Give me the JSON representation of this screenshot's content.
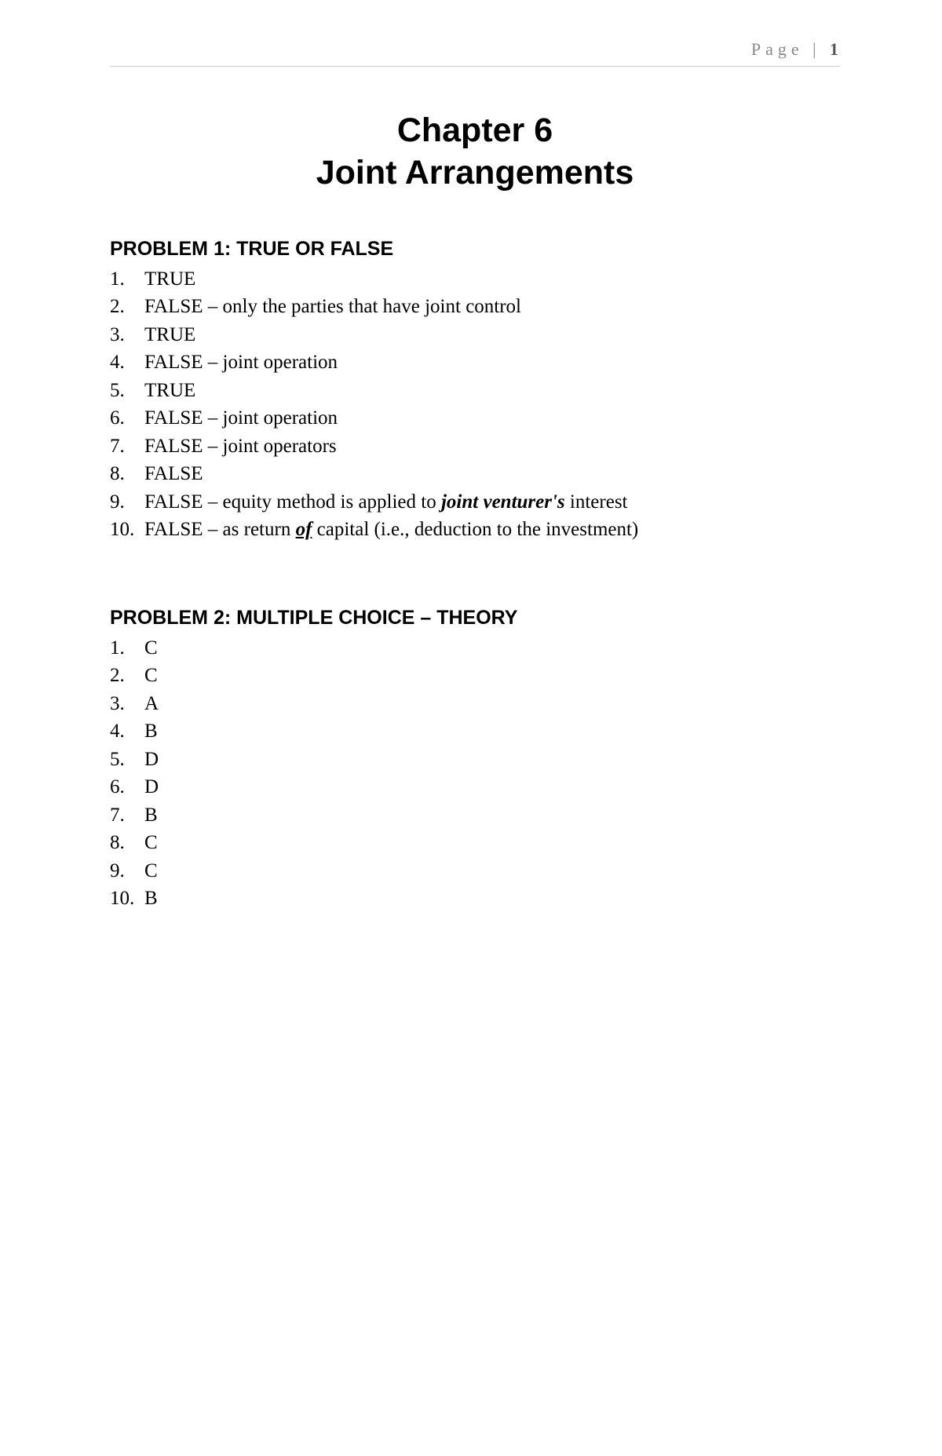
{
  "header": {
    "page_label": "Page",
    "page_separator": "|",
    "page_number": "1"
  },
  "chapter": {
    "line1": "Chapter 6",
    "line2": "Joint Arrangements"
  },
  "problem1": {
    "heading": "PROBLEM 1: TRUE OR FALSE",
    "items": [
      {
        "num": "1.",
        "text": "TRUE"
      },
      {
        "num": "2.",
        "text": "FALSE – only the parties that have joint control"
      },
      {
        "num": "3.",
        "text": "TRUE"
      },
      {
        "num": "4.",
        "text": "FALSE – joint operation"
      },
      {
        "num": "5.",
        "text": "TRUE"
      },
      {
        "num": "6.",
        "text": "FALSE – joint operation"
      },
      {
        "num": "7.",
        "text": "FALSE – joint operators"
      },
      {
        "num": "8.",
        "text": "FALSE"
      }
    ],
    "item9": {
      "num": "9.",
      "prefix": "FALSE – equity method is applied to ",
      "emphasis": "joint venturer's",
      "suffix": " interest"
    },
    "item10": {
      "num": "10.",
      "prefix": "FALSE – as return ",
      "emphasis": "of",
      "suffix": " capital (i.e., deduction to the investment)"
    }
  },
  "problem2": {
    "heading": "PROBLEM 2: MULTIPLE CHOICE – THEORY",
    "items": [
      {
        "num": "1.",
        "text": "C"
      },
      {
        "num": "2.",
        "text": "C"
      },
      {
        "num": "3.",
        "text": "A"
      },
      {
        "num": "4.",
        "text": "B"
      },
      {
        "num": "5.",
        "text": "D"
      },
      {
        "num": "6.",
        "text": "D"
      },
      {
        "num": "7.",
        "text": "B"
      },
      {
        "num": "8.",
        "text": "C"
      },
      {
        "num": "9.",
        "text": "C"
      },
      {
        "num": "10.",
        "text": "B"
      }
    ]
  }
}
